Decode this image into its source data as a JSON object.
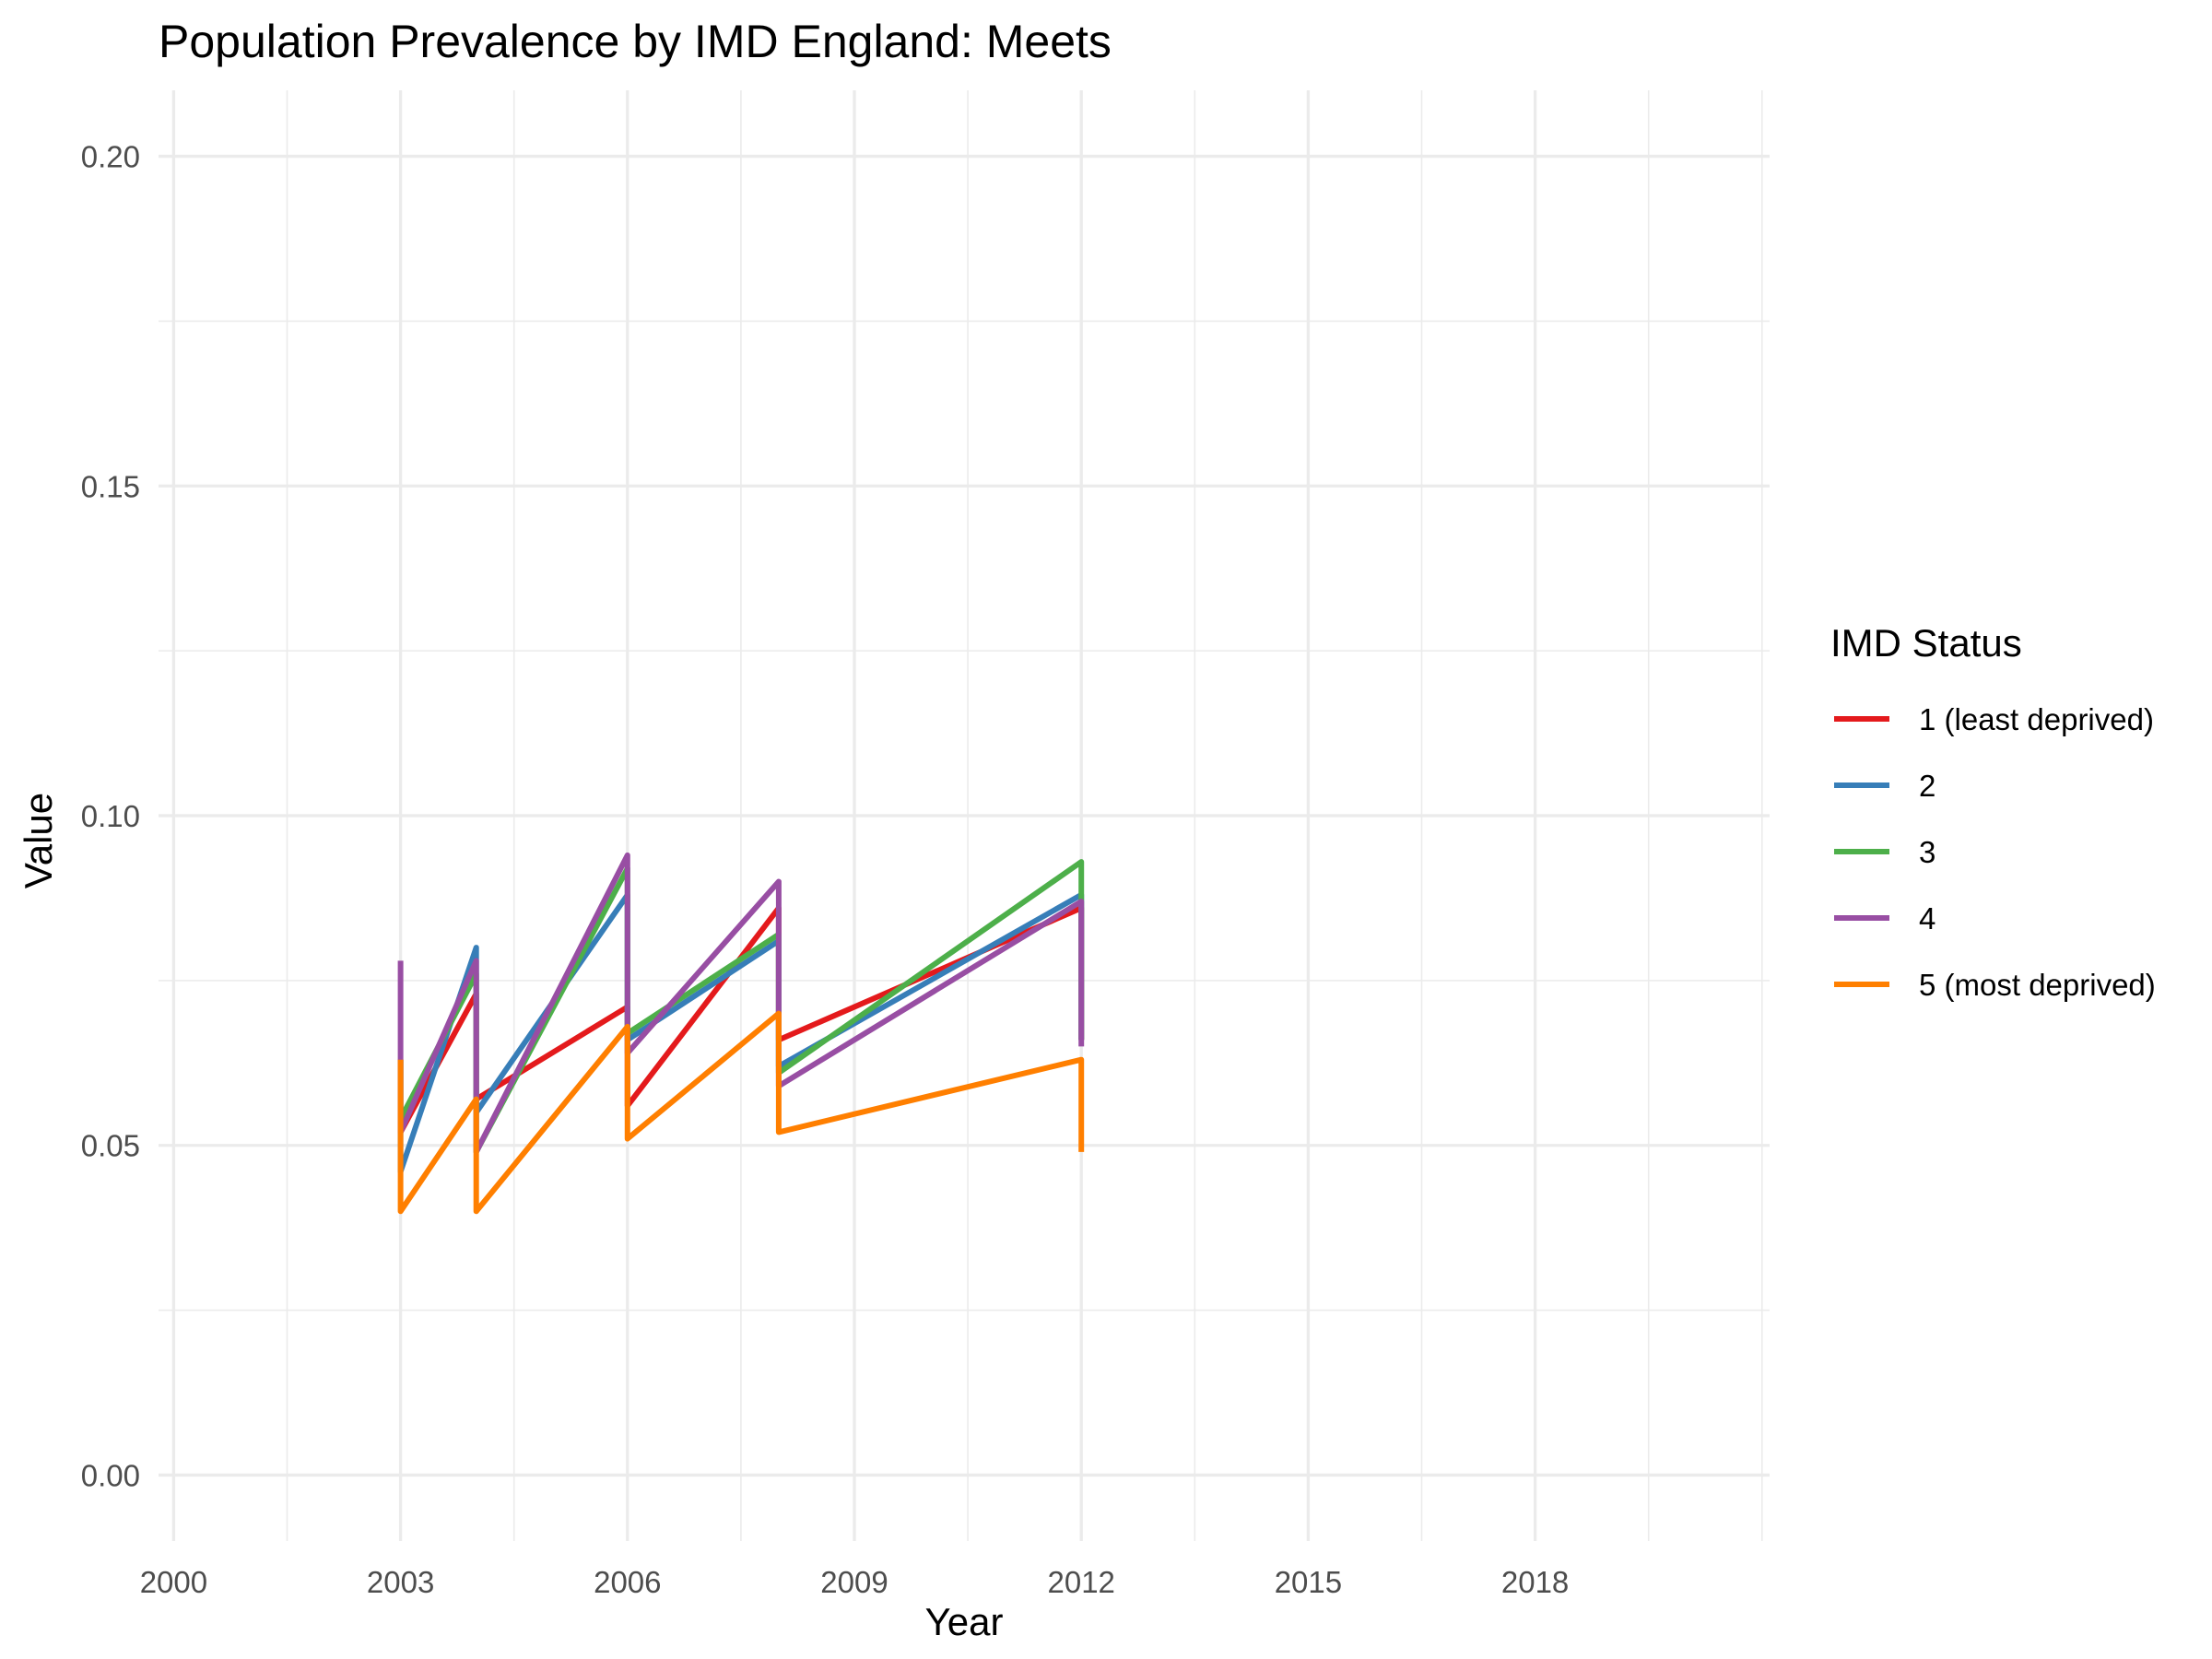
{
  "chart_data": {
    "type": "line",
    "title": "Population Prevalence by IMD England: Meets",
    "xlabel": "Year",
    "ylabel": "Value",
    "xlim": [
      1999.8,
      2021.1
    ],
    "ylim": [
      -0.01,
      0.21
    ],
    "x_ticks": [
      2000,
      2003,
      2006,
      2009,
      2012,
      2015,
      2018
    ],
    "x_minor_ticks": [
      2001.5,
      2004.5,
      2007.5,
      2010.5,
      2013.5,
      2016.5,
      2019.5,
      2021
    ],
    "y_ticks": [
      0.0,
      0.05,
      0.1,
      0.15,
      0.2
    ],
    "y_tick_labels": [
      "0.00",
      "0.05",
      "0.10",
      "0.15",
      "0.20"
    ],
    "y_minor_ticks": [
      0.025,
      0.075,
      0.125,
      0.175
    ],
    "grid": true,
    "legend": {
      "title": "IMD Status",
      "position": "right"
    },
    "series": [
      {
        "name": "1 (least deprived)",
        "color": "#E41A1C",
        "points": [
          [
            2003,
            0.063
          ],
          [
            2003,
            0.052
          ],
          [
            2004,
            0.073
          ],
          [
            2004,
            0.057
          ],
          [
            2006,
            0.071
          ],
          [
            2006,
            0.056
          ],
          [
            2008,
            0.086
          ],
          [
            2008,
            0.066
          ],
          [
            2012,
            0.086
          ],
          [
            2012,
            0.066
          ]
        ]
      },
      {
        "name": "2",
        "color": "#377EB8",
        "points": [
          [
            2003,
            0.063
          ],
          [
            2003,
            0.046
          ],
          [
            2004,
            0.08
          ],
          [
            2004,
            0.055
          ],
          [
            2006,
            0.088
          ],
          [
            2006,
            0.066
          ],
          [
            2008,
            0.081
          ],
          [
            2008,
            0.062
          ],
          [
            2012,
            0.088
          ],
          [
            2012,
            0.066
          ]
        ]
      },
      {
        "name": "3",
        "color": "#4DAF4A",
        "points": [
          [
            2003,
            0.063
          ],
          [
            2003,
            0.054
          ],
          [
            2004,
            0.076
          ],
          [
            2004,
            0.049
          ],
          [
            2006,
            0.092
          ],
          [
            2006,
            0.067
          ],
          [
            2008,
            0.082
          ],
          [
            2008,
            0.061
          ],
          [
            2012,
            0.093
          ],
          [
            2012,
            0.066
          ]
        ]
      },
      {
        "name": "4",
        "color": "#984EA3",
        "points": [
          [
            2003,
            0.078
          ],
          [
            2003,
            0.052
          ],
          [
            2004,
            0.078
          ],
          [
            2004,
            0.049
          ],
          [
            2006,
            0.094
          ],
          [
            2006,
            0.064
          ],
          [
            2008,
            0.09
          ],
          [
            2008,
            0.059
          ],
          [
            2012,
            0.087
          ],
          [
            2012,
            0.065
          ]
        ]
      },
      {
        "name": "5 (most deprived)",
        "color": "#FF7F00",
        "points": [
          [
            2003,
            0.063
          ],
          [
            2003,
            0.04
          ],
          [
            2004,
            0.057
          ],
          [
            2004,
            0.04
          ],
          [
            2006,
            0.068
          ],
          [
            2006,
            0.051
          ],
          [
            2008,
            0.07
          ],
          [
            2008,
            0.052
          ],
          [
            2012,
            0.063
          ],
          [
            2012,
            0.049
          ]
        ]
      }
    ]
  }
}
